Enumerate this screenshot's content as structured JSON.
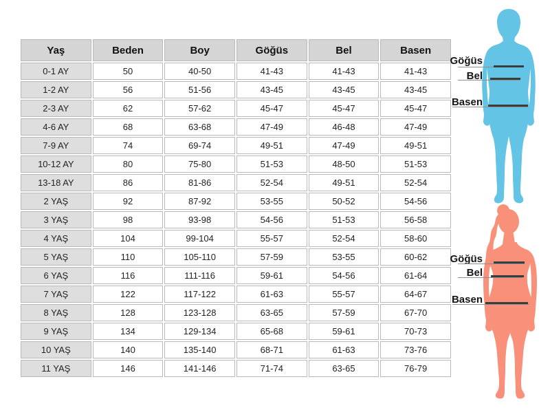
{
  "chart_data": {
    "type": "table",
    "title": "",
    "columns": [
      "Yaş",
      "Beden",
      "Boy",
      "Göğüs",
      "Bel",
      "Basen"
    ],
    "rows": [
      [
        "0-1 AY",
        "50",
        "40-50",
        "41-43",
        "41-43",
        "41-43"
      ],
      [
        "1-2 AY",
        "56",
        "51-56",
        "43-45",
        "43-45",
        "43-45"
      ],
      [
        "2-3 AY",
        "62",
        "57-62",
        "45-47",
        "45-47",
        "45-47"
      ],
      [
        "4-6 AY",
        "68",
        "63-68",
        "47-49",
        "46-48",
        "47-49"
      ],
      [
        "7-9 AY",
        "74",
        "69-74",
        "49-51",
        "47-49",
        "49-51"
      ],
      [
        "10-12 AY",
        "80",
        "75-80",
        "51-53",
        "48-50",
        "51-53"
      ],
      [
        "13-18 AY",
        "86",
        "81-86",
        "52-54",
        "49-51",
        "52-54"
      ],
      [
        "2 YAŞ",
        "92",
        "87-92",
        "53-55",
        "50-52",
        "54-56"
      ],
      [
        "3 YAŞ",
        "98",
        "93-98",
        "54-56",
        "51-53",
        "56-58"
      ],
      [
        "4 YAŞ",
        "104",
        "99-104",
        "55-57",
        "52-54",
        "58-60"
      ],
      [
        "5 YAŞ",
        "110",
        "105-110",
        "57-59",
        "53-55",
        "60-62"
      ],
      [
        "6 YAŞ",
        "116",
        "111-116",
        "59-61",
        "54-56",
        "61-64"
      ],
      [
        "7 YAŞ",
        "122",
        "117-122",
        "61-63",
        "55-57",
        "64-67"
      ],
      [
        "8 YAŞ",
        "128",
        "123-128",
        "63-65",
        "57-59",
        "67-70"
      ],
      [
        "9 YAŞ",
        "134",
        "129-134",
        "65-68",
        "59-61",
        "70-73"
      ],
      [
        "10 YAŞ",
        "140",
        "135-140",
        "68-71",
        "61-63",
        "73-76"
      ],
      [
        "11 YAŞ",
        "146",
        "141-146",
        "71-74",
        "63-65",
        "76-79"
      ]
    ]
  },
  "figures": {
    "child": {
      "color": "#63C4E6",
      "labels": {
        "chest": "Göğüs",
        "waist": "Bel",
        "hips": "Basen"
      }
    },
    "woman": {
      "color": "#F9907A",
      "labels": {
        "chest": "Göğüs",
        "waist": "Bel",
        "hips": "Basen"
      }
    }
  },
  "colors": {
    "header_bg": "#d5d5d5",
    "age_column_bg": "#dedede",
    "cell_border": "#b9b9b9",
    "measure_bar": "#3c3c3c"
  }
}
